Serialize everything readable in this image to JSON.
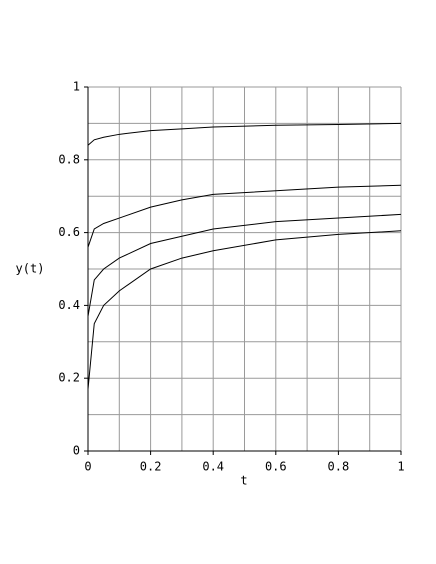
{
  "chart_data": {
    "type": "line",
    "xlabel": "t",
    "ylabel": "y(t)",
    "x": [
      0,
      0.02,
      0.05,
      0.1,
      0.2,
      0.3,
      0.4,
      0.6,
      0.8,
      1
    ],
    "series": [
      {
        "color": "#000000",
        "values": [
          0.84,
          0.855,
          0.862,
          0.87,
          0.88,
          0.885,
          0.89,
          0.895,
          0.897,
          0.9
        ]
      },
      {
        "color": "#000000",
        "values": [
          0.56,
          0.61,
          0.625,
          0.64,
          0.67,
          0.69,
          0.705,
          0.715,
          0.725,
          0.73
        ]
      },
      {
        "color": "#000000",
        "values": [
          0.37,
          0.47,
          0.5,
          0.53,
          0.57,
          0.59,
          0.61,
          0.63,
          0.64,
          0.65
        ]
      },
      {
        "color": "#000000",
        "values": [
          0.17,
          0.35,
          0.4,
          0.44,
          0.5,
          0.53,
          0.55,
          0.58,
          0.595,
          0.605
        ]
      }
    ],
    "xlim": [
      0,
      1
    ],
    "ylim": [
      0,
      1
    ],
    "xticks": [
      0,
      0.2,
      0.4,
      0.6,
      0.8,
      1
    ],
    "yticks": [
      0,
      0.2,
      0.4,
      0.6,
      0.8,
      1
    ],
    "xgrid": [
      0.1,
      0.2,
      0.3,
      0.4,
      0.5,
      0.6,
      0.7,
      0.8,
      0.9,
      1
    ],
    "ygrid": [
      0.1,
      0.2,
      0.3,
      0.4,
      0.5,
      0.6,
      0.7,
      0.8,
      0.9,
      1
    ],
    "grid": true
  }
}
